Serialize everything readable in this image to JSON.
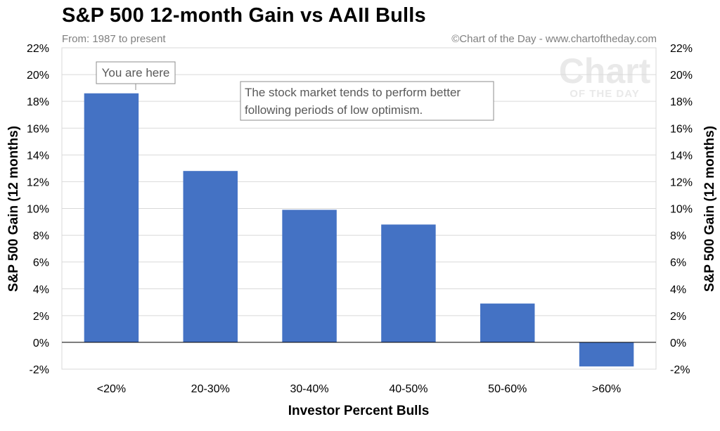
{
  "header": {
    "title": "S&P 500 12-month Gain vs AAII Bulls",
    "subtitle": "From: 1987 to present",
    "credit": "©Chart of the Day - www.chartoftheday.com"
  },
  "watermark": {
    "line1": "Chart",
    "line2": "OF THE DAY"
  },
  "annotations": {
    "marker": "You are here",
    "note_line1": "The stock market tends to perform better",
    "note_line2": "following periods of low optimism."
  },
  "colors": {
    "bar": "#4472c4",
    "grid": "#d9d9d9",
    "annotation_border": "#8c8c8c"
  },
  "chart_data": {
    "type": "bar",
    "categories": [
      "<20%",
      "20-30%",
      "30-40%",
      "40-50%",
      "50-60%",
      ">60%"
    ],
    "values": [
      18.6,
      12.8,
      9.9,
      8.8,
      2.9,
      -1.8
    ],
    "xlabel": "Investor Percent Bulls",
    "ylabel": "S&P 500 Gain (12 months)",
    "ylabel_right": "S&P 500 Gain (12 months)",
    "ylim": [
      -2,
      22
    ],
    "yticks": [
      "-2%",
      "0%",
      "2%",
      "4%",
      "6%",
      "8%",
      "10%",
      "12%",
      "14%",
      "16%",
      "18%",
      "20%",
      "22%"
    ],
    "grid": true,
    "legend": "none"
  }
}
